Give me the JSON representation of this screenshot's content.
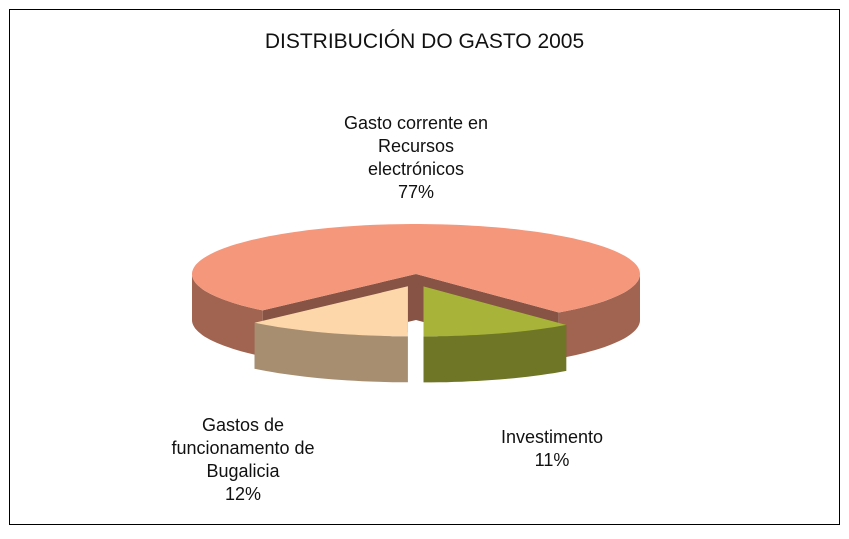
{
  "chart_data": {
    "type": "pie3d",
    "title": "DISTRIBUCIÓN DO GASTO 2005",
    "categories": [
      "Gasto corrente en Recursos electrónicos",
      "Investimento",
      "Gastos de funcionamento de Bugalicia"
    ],
    "values": [
      77,
      11,
      12
    ],
    "value_labels": [
      "77%",
      "11%",
      "12%"
    ],
    "colors": [
      "#f4977b",
      "#a8b33a",
      "#fdd7aa"
    ]
  }
}
